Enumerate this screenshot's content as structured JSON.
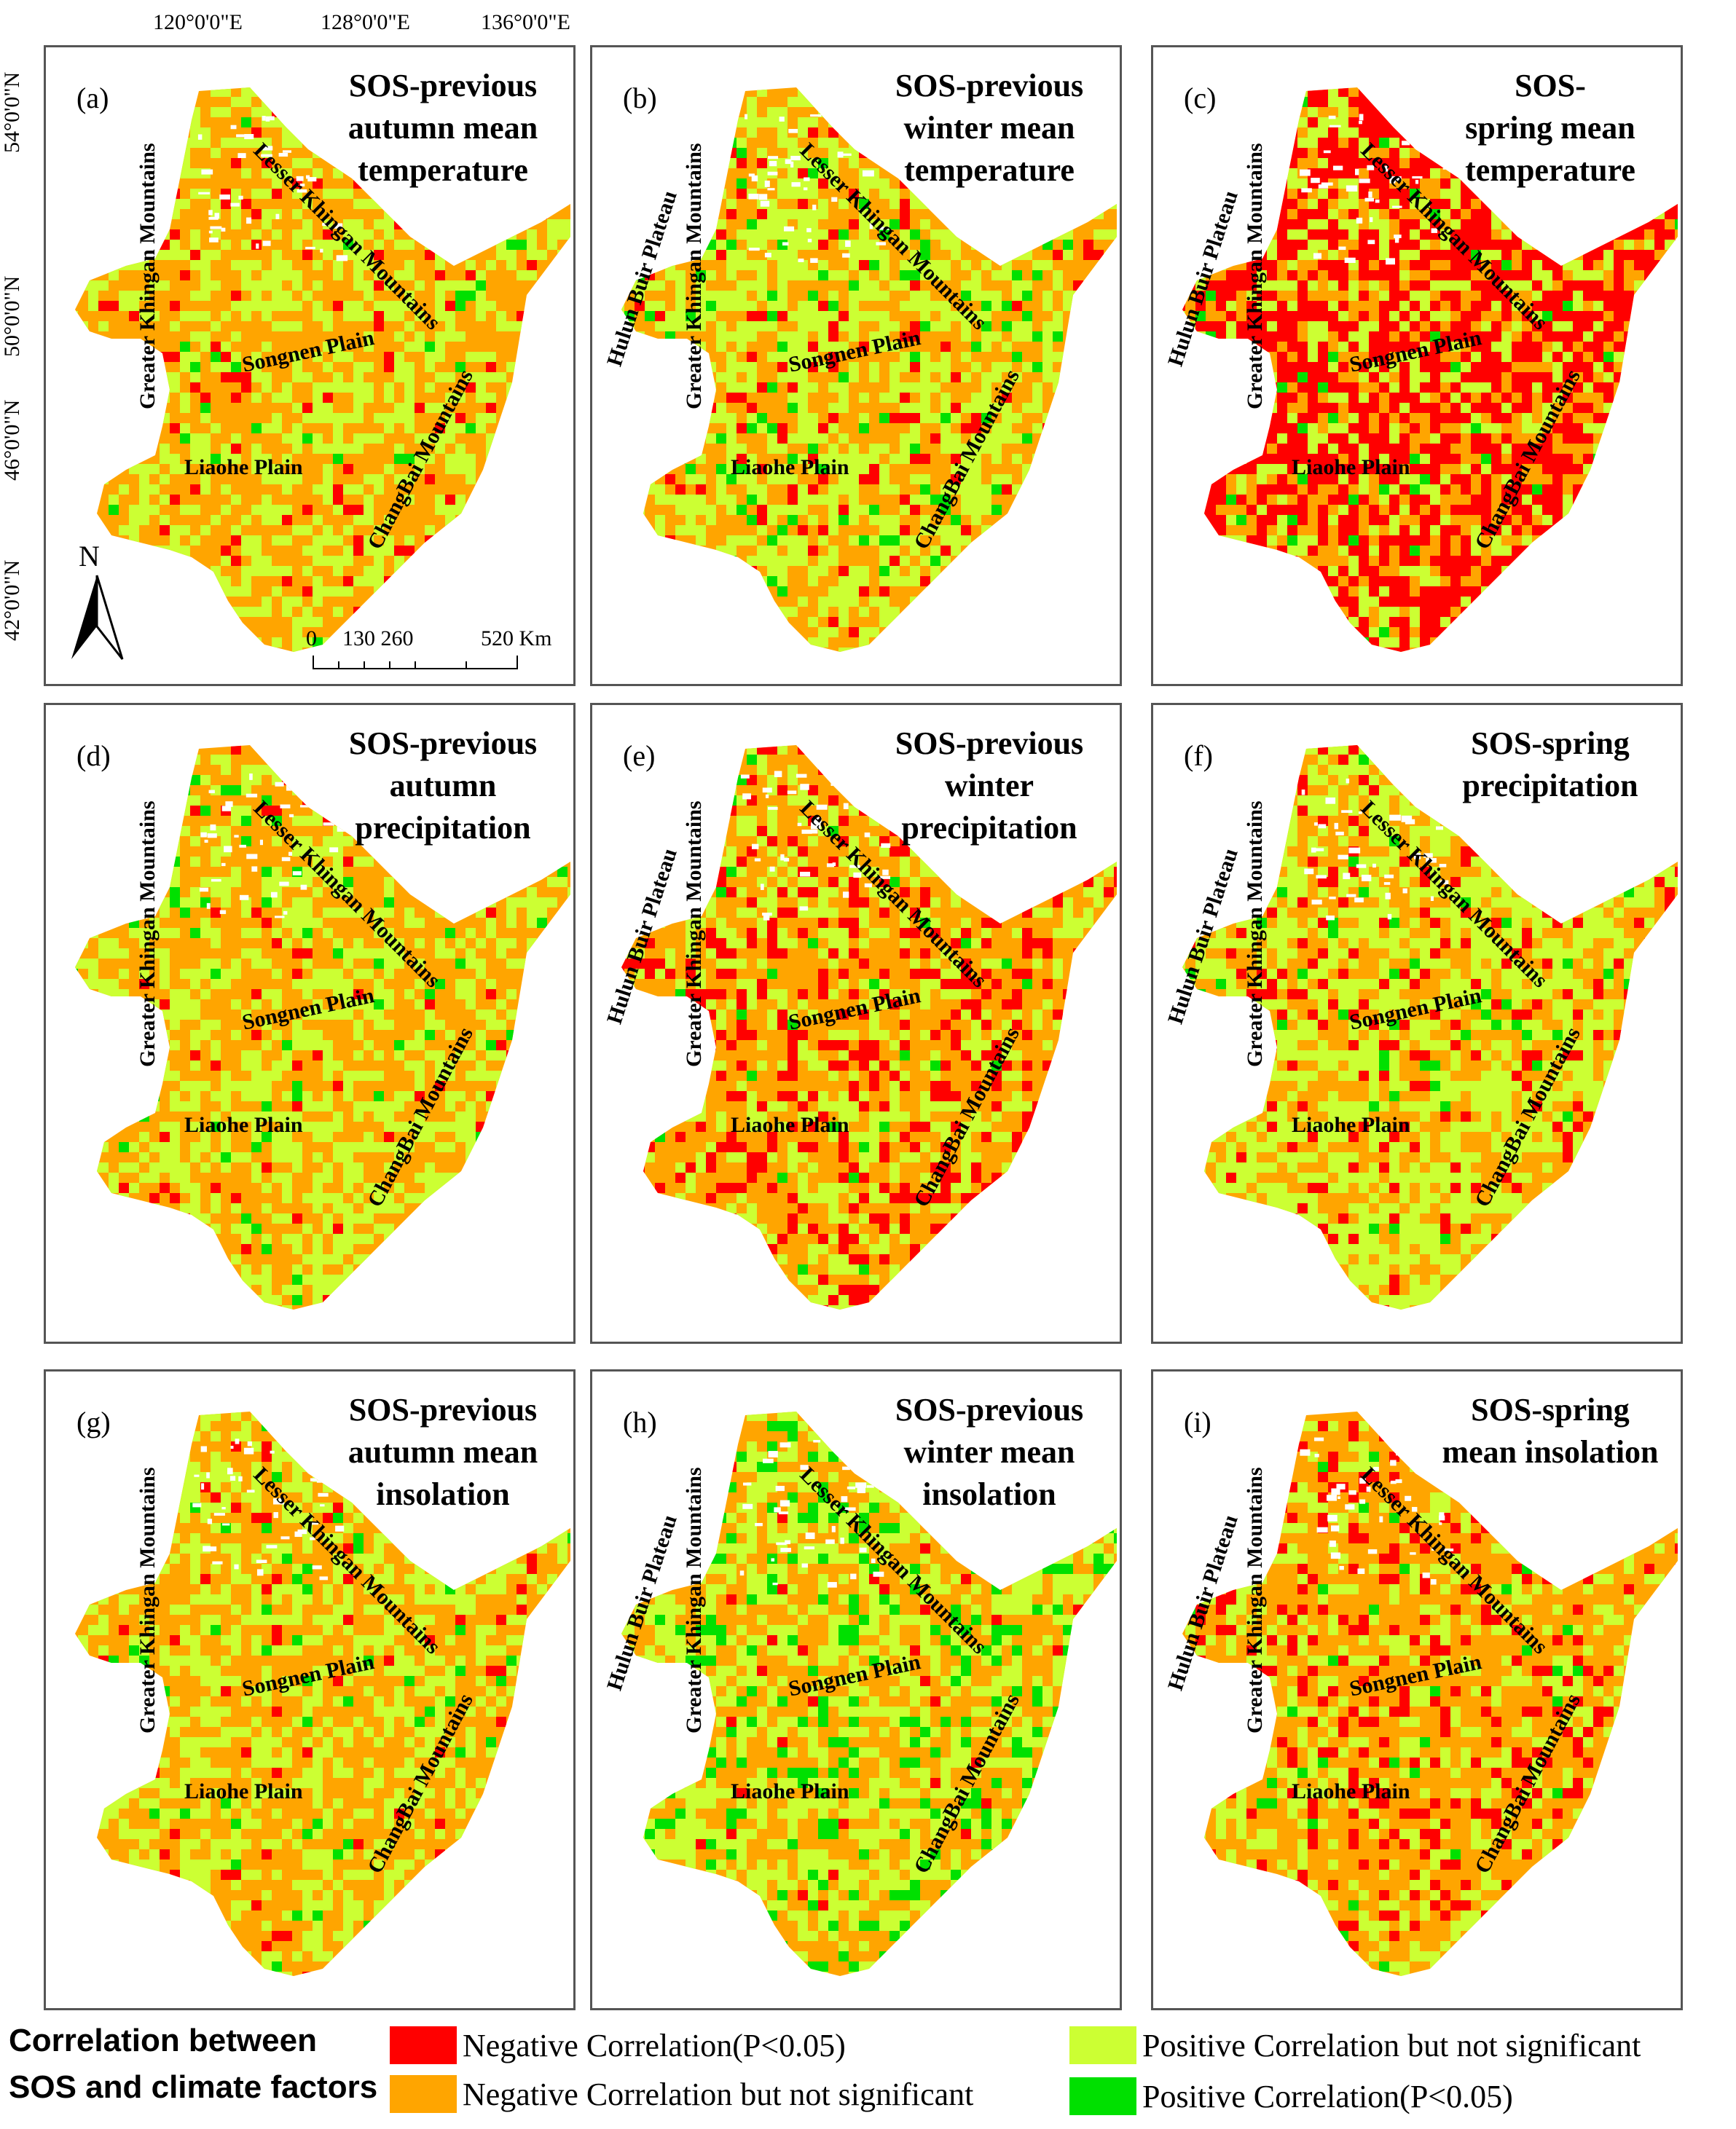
{
  "coordinates": {
    "longitude": [
      "120°0'0\"E",
      "128°0'0\"E",
      "136°0'0\"E"
    ],
    "latitude": [
      "54°0'0\"N",
      "50°0'0\"N",
      "46°0'0\"N",
      "42°0'0\"N"
    ]
  },
  "panels": [
    {
      "label": "(a)",
      "title": "SOS-previous\nautumn mean\ntemperature",
      "has_hulun": false,
      "composition": {
        "negative_significant": 0.05,
        "negative": 0.55,
        "positive": 0.38,
        "positive_significant": 0.02
      }
    },
    {
      "label": "(b)",
      "title": "SOS-previous\nwinter mean\ntemperature",
      "has_hulun": true,
      "composition": {
        "negative_significant": 0.08,
        "negative": 0.42,
        "positive": 0.44,
        "positive_significant": 0.06
      }
    },
    {
      "label": "(c)",
      "title": "SOS-\nspring mean\ntemperature",
      "has_hulun": true,
      "composition": {
        "negative_significant": 0.52,
        "negative": 0.24,
        "positive": 0.22,
        "positive_significant": 0.02
      }
    },
    {
      "label": "(d)",
      "title": "SOS-previous\nautumn\nprecipitation",
      "has_hulun": false,
      "composition": {
        "negative_significant": 0.03,
        "negative": 0.52,
        "positive": 0.41,
        "positive_significant": 0.04
      }
    },
    {
      "label": "(e)",
      "title": "SOS-previous\nwinter\nprecipitation",
      "has_hulun": true,
      "composition": {
        "negative_significant": 0.22,
        "negative": 0.48,
        "positive": 0.28,
        "positive_significant": 0.02
      }
    },
    {
      "label": "(f)",
      "title": "SOS-spring\nprecipitation",
      "has_hulun": true,
      "composition": {
        "negative_significant": 0.1,
        "negative": 0.38,
        "positive": 0.48,
        "positive_significant": 0.04
      }
    },
    {
      "label": "(g)",
      "title": "SOS-previous\nautumn mean\ninsolation",
      "has_hulun": false,
      "composition": {
        "negative_significant": 0.03,
        "negative": 0.55,
        "positive": 0.39,
        "positive_significant": 0.03
      }
    },
    {
      "label": "(h)",
      "title": "SOS-previous\nwinter mean\ninsolation",
      "has_hulun": true,
      "composition": {
        "negative_significant": 0.02,
        "negative": 0.45,
        "positive": 0.41,
        "positive_significant": 0.12
      }
    },
    {
      "label": "(i)",
      "title": "SOS-spring\nmean insolation",
      "has_hulun": true,
      "composition": {
        "negative_significant": 0.16,
        "negative": 0.6,
        "positive": 0.22,
        "positive_significant": 0.02
      }
    }
  ],
  "regions": {
    "lesser": "Lesser Khingan Mountains",
    "greater": "Greater Khingan Mountains",
    "songnen": "Songnen Plain",
    "liaohe": "Liaohe Plain",
    "changbai": "ChangBai Mountains",
    "hulun": "Hulun Buir Plateau"
  },
  "north_arrow": "N",
  "scale_bar": {
    "labels": [
      "0",
      "130 260",
      "520 Km"
    ]
  },
  "legend": {
    "title": "Correlation between\nSOS and climate factors",
    "items": [
      {
        "label": "Negative Correlation(P<0.05)",
        "color": "#ff0000"
      },
      {
        "label": "Negative Correlation but not significant",
        "color": "#ffa500"
      },
      {
        "label": "Positive Correlation but not significant",
        "color": "#ccff33"
      },
      {
        "label": "Positive Correlation(P<0.05)",
        "color": "#00e000"
      }
    ]
  }
}
